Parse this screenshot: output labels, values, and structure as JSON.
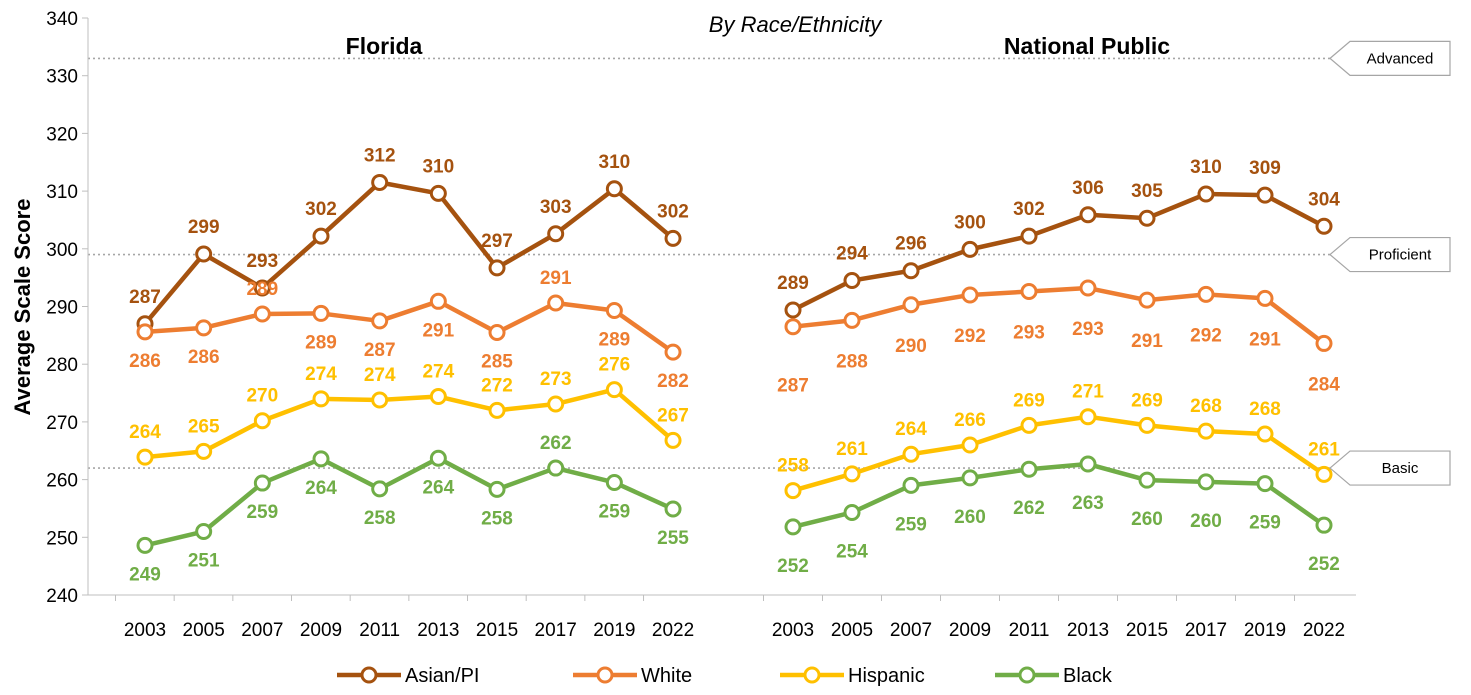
{
  "chart_data": {
    "type": "line",
    "subtitle": "By Race/Ethnicity",
    "ylabel": "Average Scale Score",
    "ylim": [
      240,
      340
    ],
    "yticks": [
      240,
      250,
      260,
      270,
      280,
      290,
      300,
      310,
      320,
      330,
      340
    ],
    "x": [
      "2003",
      "2005",
      "2007",
      "2009",
      "2011",
      "2013",
      "2015",
      "2017",
      "2019",
      "2022"
    ],
    "grid": false,
    "legend_position": "bottom",
    "achievement_levels": [
      {
        "label": "Advanced",
        "value": 333
      },
      {
        "label": "Proficient",
        "value": 299
      },
      {
        "label": "Basic",
        "value": 262
      }
    ],
    "colors": {
      "Asian/PI": "#a5520f",
      "White": "#ed7d31",
      "Hispanic": "#ffc000",
      "Black": "#70ad47",
      "reference_line": "#a6a6a6"
    },
    "legend": [
      "Asian/PI",
      "White",
      "Hispanic",
      "Black"
    ],
    "panels": [
      {
        "title": "Florida",
        "series": [
          {
            "name": "Asian/PI",
            "values": [
              287,
              299,
              293,
              302,
              312,
              310,
              297,
              303,
              310,
              302
            ],
            "plot_values": [
              287.0,
              299.1,
              293.2,
              302.2,
              311.5,
              309.6,
              296.7,
              302.6,
              310.4,
              301.8
            ]
          },
          {
            "name": "White",
            "values": [
              286,
              286,
              289,
              289,
              287,
              291,
              285,
              291,
              289,
              282
            ],
            "plot_values": [
              285.6,
              286.3,
              288.7,
              288.8,
              287.5,
              290.9,
              285.5,
              290.6,
              289.3,
              282.1
            ]
          },
          {
            "name": "Hispanic",
            "values": [
              264,
              265,
              270,
              274,
              274,
              274,
              272,
              273,
              276,
              267
            ],
            "plot_values": [
              263.9,
              264.9,
              270.2,
              274.0,
              273.8,
              274.4,
              272.0,
              273.1,
              275.6,
              266.8
            ]
          },
          {
            "name": "Black",
            "values": [
              249,
              251,
              259,
              264,
              258,
              264,
              258,
              262,
              259,
              255
            ],
            "plot_values": [
              248.6,
              251.0,
              259.4,
              263.6,
              258.4,
              263.7,
              258.3,
              262.0,
              259.5,
              254.9
            ]
          }
        ]
      },
      {
        "title": "National Public",
        "series": [
          {
            "name": "Asian/PI",
            "values": [
              289,
              294,
              296,
              300,
              302,
              306,
              305,
              310,
              309,
              304
            ],
            "plot_values": [
              289.4,
              294.5,
              296.2,
              299.9,
              302.2,
              305.9,
              305.3,
              309.5,
              309.3,
              303.9
            ]
          },
          {
            "name": "White",
            "values": [
              287,
              288,
              290,
              292,
              293,
              293,
              291,
              292,
              291,
              284
            ],
            "plot_values": [
              286.5,
              287.6,
              290.3,
              292.0,
              292.6,
              293.2,
              291.1,
              292.1,
              291.4,
              283.6
            ]
          },
          {
            "name": "Hispanic",
            "values": [
              258,
              261,
              264,
              266,
              269,
              271,
              269,
              268,
              268,
              261
            ],
            "plot_values": [
              258.1,
              261.0,
              264.4,
              266.0,
              269.4,
              270.9,
              269.4,
              268.4,
              267.9,
              260.9
            ]
          },
          {
            "name": "Black",
            "values": [
              252,
              254,
              259,
              260,
              262,
              263,
              260,
              260,
              259,
              252
            ],
            "plot_values": [
              251.8,
              254.3,
              259.0,
              260.3,
              261.8,
              262.7,
              259.9,
              259.6,
              259.3,
              252.1
            ]
          }
        ]
      }
    ]
  }
}
